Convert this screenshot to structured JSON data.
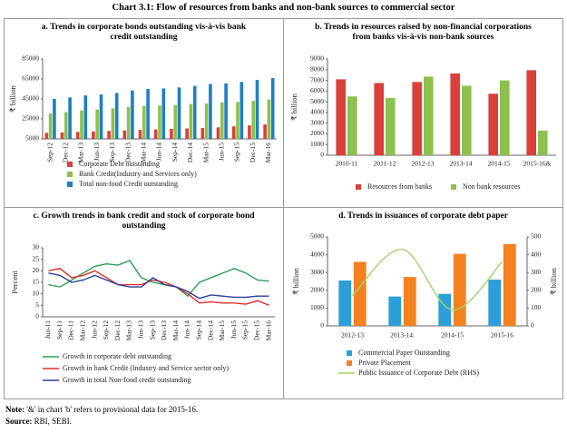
{
  "title": "Chart 3.1: Flow of resources from banks and non-bank sources to commercial sector",
  "chart_data": [
    {
      "type": "bar",
      "title": "a. Trends in corporate bonds outstanding vis-à-vis bank credit outstanding",
      "ylabel": "₹ billion",
      "categories": [
        "Sep-12",
        "Dec-12",
        "Mar-13",
        "Jun-13",
        "Sep-13",
        "Dec-13",
        "Mar-14",
        "Jun-14",
        "Sep-14",
        "Dec-14",
        "Mar-15",
        "Jun-15",
        "Sep-15",
        "Dec-15",
        "Mar-16"
      ],
      "series": [
        {
          "name": "Corporate Debt outstanding",
          "color": "#d9403a",
          "values": [
            11000,
            11500,
            12000,
            12500,
            13000,
            13500,
            14000,
            14500,
            15000,
            15500,
            16000,
            16500,
            17500,
            18500,
            19500
          ]
        },
        {
          "name": "Bank Credit(Industry and Services only)",
          "color": "#8dc04f",
          "values": [
            30500,
            32000,
            33500,
            34500,
            35500,
            37000,
            38000,
            38500,
            39000,
            40000,
            40500,
            41500,
            42000,
            43000,
            44500
          ]
        },
        {
          "name": "Total non-food Credit outstanding",
          "color": "#1f7fc1",
          "values": [
            45000,
            46500,
            48500,
            49500,
            51000,
            53500,
            55000,
            55500,
            56500,
            58000,
            60000,
            60500,
            62000,
            64000,
            66000
          ]
        }
      ],
      "ylim": [
        5000,
        85000
      ],
      "yticks": [
        5000,
        25000,
        45000,
        65000,
        85000
      ]
    },
    {
      "type": "bar",
      "title": "b. Trends in resources raised by non-financial corporations from banks vis-à-vis non-bank sources",
      "ylabel": "₹ billion",
      "categories": [
        "2010-11",
        "2011-12",
        "2012-13",
        "2013-14",
        "2014-15",
        "2015-16&"
      ],
      "series": [
        {
          "name": "Resources from banks",
          "color": "#d9403a",
          "values": [
            7100,
            6750,
            6850,
            7650,
            5750,
            7950
          ]
        },
        {
          "name": "Non bank resources",
          "color": "#8dc04f",
          "values": [
            5500,
            5350,
            7350,
            6500,
            7000,
            2300
          ]
        }
      ],
      "ylim": [
        0,
        9000
      ],
      "yticks": [
        0,
        1000,
        2000,
        3000,
        4000,
        5000,
        6000,
        7000,
        8000,
        9000
      ]
    },
    {
      "type": "line",
      "title": "c. Growth trends in bank credit and stock of corporate bond outstanding",
      "ylabel": "Percent",
      "categories": [
        "Jun-11",
        "Sep-11",
        "Dec-11",
        "Mar-12",
        "Jun-12",
        "Sep-12",
        "Dec-12",
        "Mar-13",
        "Jun-13",
        "Sep-13",
        "Dec-13",
        "Mar-14",
        "Jun-14",
        "Sep-14",
        "Dec-14",
        "Mar-15",
        "Jun-15",
        "Sep-15",
        "Dec-15",
        "Mar-16"
      ],
      "series": [
        {
          "name": "Growth in corporate debt outstanding",
          "color": "#2e9e58",
          "values": [
            14,
            13,
            16,
            19,
            22,
            23,
            22.5,
            24.5,
            17,
            15,
            14,
            13,
            9,
            15,
            17,
            19,
            21,
            19,
            16,
            15.5
          ]
        },
        {
          "name": "Growth in bank Credit (Industry and Service sector only)",
          "color": "#e0302a",
          "values": [
            20,
            21,
            17,
            18,
            20,
            17,
            14,
            14,
            14,
            16,
            15,
            13,
            10,
            6,
            6.5,
            6,
            6,
            5.5,
            7,
            5
          ]
        },
        {
          "name": "Growth in total Non-food credit outstanding",
          "color": "#2c3f9c",
          "values": [
            19,
            18,
            15,
            16,
            18,
            16,
            14,
            13,
            13,
            17,
            14,
            13,
            11,
            8,
            9.5,
            9,
            8.5,
            8.5,
            9,
            9
          ]
        }
      ],
      "ylim": [
        0,
        30
      ],
      "yticks": [
        0,
        5,
        10,
        15,
        20,
        25,
        30
      ]
    },
    {
      "type": "bar",
      "title": "d. Trends in issuances of corporate debt paper",
      "ylabel": "₹ billion",
      "y2label": "₹ billion",
      "categories": [
        "2012-13",
        "2013-14.",
        "2014-15",
        "2015-16"
      ],
      "series": [
        {
          "name": "Commercial Paper Outstanding",
          "color": "#2d9fd8",
          "values": [
            2550,
            1650,
            1800,
            2600
          ]
        },
        {
          "name": "Private Placement",
          "color": "#f58220",
          "values": [
            3600,
            2750,
            4050,
            4600
          ]
        },
        {
          "name": "Public Issuance of Corporate Debt (RHS)",
          "color": "#a3d36a",
          "type": "line",
          "axis": "y2",
          "smooth": true,
          "values": [
            170,
            430,
            90,
            360
          ]
        }
      ],
      "ylim": [
        0,
        5000
      ],
      "yticks": [
        0,
        1000,
        2000,
        3000,
        4000,
        5000
      ],
      "y2lim": [
        0,
        500
      ],
      "y2ticks": [
        0,
        100,
        200,
        300,
        400,
        500
      ]
    }
  ],
  "note_label": "Note:",
  "note": "'&' in chart 'b' refers to provisional data for 2015-16.",
  "source_label": "Source:",
  "source": "RBI, SEBI."
}
